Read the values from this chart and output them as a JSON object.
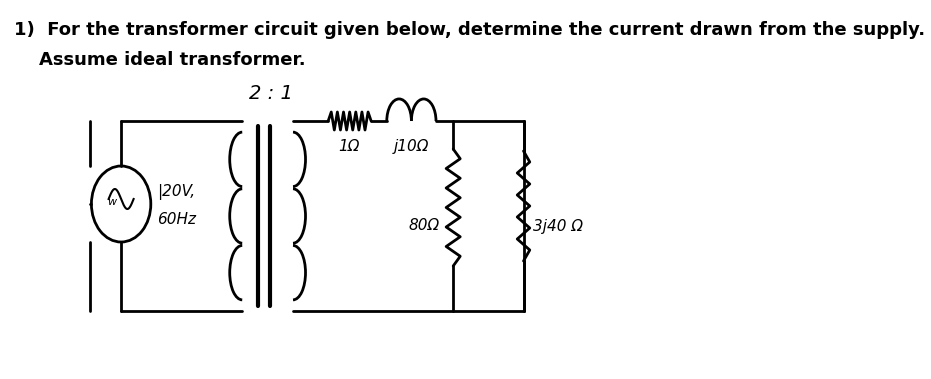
{
  "title_line1": "1)  For the transformer circuit given below, determine the current drawn from the supply.",
  "title_line2": "    Assume ideal transformer.",
  "bg_color": "#ffffff",
  "text_color": "#000000",
  "title_fontsize": 13.0,
  "circuit": {
    "ratio_label": "2 : 1",
    "source_label1": "|20V,",
    "source_label2": "60Hz",
    "r_label": "1Ω",
    "xl_label": "j10Ω",
    "r2_label": "80Ω",
    "zl_label": "3j40 Ω"
  },
  "layout": {
    "fig_w": 9.31,
    "fig_h": 3.79,
    "dpi": 100
  }
}
